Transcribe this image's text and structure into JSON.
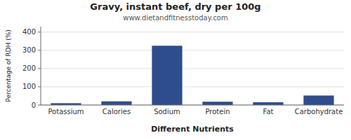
{
  "chart_data": {
    "type": "bar",
    "title": "Gravy, instant beef, dry per 100g",
    "subtitle": "www.dietandfitnesstoday.com",
    "xlabel": "Different Nutrients",
    "ylabel": "Percentage of RDH (%)",
    "categories": [
      "Potassium",
      "Calories",
      "Sodium",
      "Protein",
      "Fat",
      "Carbohydrate"
    ],
    "values": [
      10,
      20,
      325,
      18,
      15,
      52
    ],
    "color": "#2e4d8c",
    "ylim": [
      0,
      430
    ],
    "yticks": [
      0,
      100,
      200,
      300,
      400
    ],
    "grid": true
  }
}
